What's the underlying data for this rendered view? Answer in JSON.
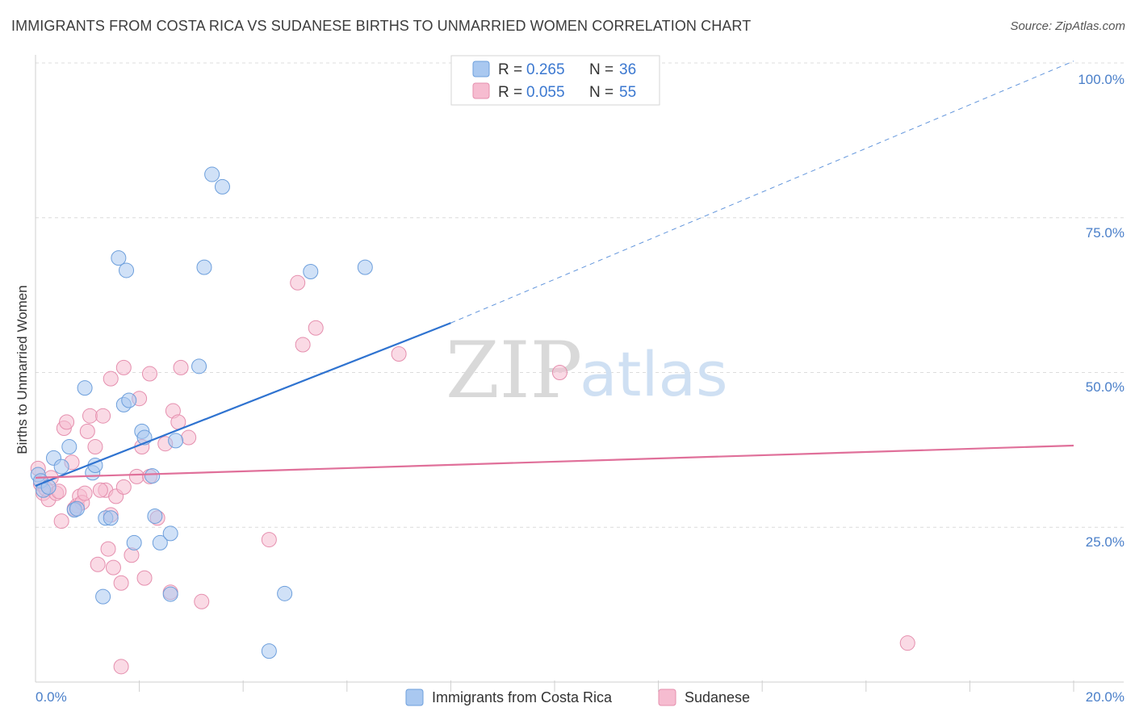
{
  "header": {
    "title": "IMMIGRANTS FROM COSTA RICA VS SUDANESE BIRTHS TO UNMARRIED WOMEN CORRELATION CHART",
    "source": "Source: ZipAtlas.com"
  },
  "watermark": {
    "zip": "ZIP",
    "atlas": "atlas"
  },
  "legend": {
    "rows": [
      {
        "r_label": "R = ",
        "r_value": "0.265",
        "n_label": "N = ",
        "n_value": "36"
      },
      {
        "r_label": "R = ",
        "r_value": "0.055",
        "n_label": "N = ",
        "n_value": "55"
      }
    ]
  },
  "bottom_legend": {
    "items": [
      {
        "label": "Immigrants from Costa Rica"
      },
      {
        "label": "Sudanese"
      }
    ]
  },
  "colors": {
    "blue_fill": "#a9c8f0",
    "blue_stroke": "#6d9fdc",
    "blue_line": "#2f73d0",
    "pink_fill": "#f6bcd0",
    "pink_stroke": "#e58fae",
    "pink_line": "#e0709a",
    "grid": "#dcdcdc",
    "tick_text": "#4a7fc9"
  },
  "chart_data": {
    "type": "scatter",
    "title": "IMMIGRANTS FROM COSTA RICA VS SUDANESE BIRTHS TO UNMARRIED WOMEN CORRELATION CHART",
    "xlabel": "",
    "ylabel": "Births to Unmarried Women",
    "xlim": [
      0,
      20
    ],
    "ylim": [
      0,
      100
    ],
    "x_tick_labels": [
      "0.0%",
      "20.0%"
    ],
    "y_tick_labels": [
      "25.0%",
      "50.0%",
      "75.0%",
      "100.0%"
    ],
    "y_ticks": [
      25,
      50,
      75,
      100
    ],
    "grid": true,
    "series": [
      {
        "name": "Immigrants from Costa Rica",
        "r": 0.265,
        "n": 36,
        "trend": {
          "x0": 0,
          "y0": 31.7,
          "x1": 8.0,
          "y1": 58.0,
          "dash_to_x": 20,
          "dash_to_y": 100.3
        },
        "points": [
          [
            0.05,
            33.5
          ],
          [
            0.1,
            32.5
          ],
          [
            0.15,
            31.0
          ],
          [
            0.25,
            31.5
          ],
          [
            0.35,
            36.2
          ],
          [
            0.5,
            34.8
          ],
          [
            0.65,
            38.0
          ],
          [
            0.75,
            27.8
          ],
          [
            0.8,
            28.0
          ],
          [
            0.95,
            47.5
          ],
          [
            1.1,
            33.8
          ],
          [
            1.15,
            35.0
          ],
          [
            1.35,
            26.5
          ],
          [
            1.45,
            26.5
          ],
          [
            1.6,
            68.5
          ],
          [
            1.7,
            44.8
          ],
          [
            1.75,
            66.5
          ],
          [
            1.8,
            45.5
          ],
          [
            1.9,
            22.5
          ],
          [
            2.05,
            40.5
          ],
          [
            2.1,
            39.5
          ],
          [
            2.3,
            26.8
          ],
          [
            2.4,
            22.5
          ],
          [
            2.6,
            24.0
          ],
          [
            2.7,
            39.0
          ],
          [
            3.15,
            51.0
          ],
          [
            3.25,
            67.0
          ],
          [
            3.4,
            82.0
          ],
          [
            3.6,
            80.0
          ],
          [
            4.5,
            5.0
          ],
          [
            4.8,
            14.3
          ],
          [
            5.3,
            66.3
          ],
          [
            6.35,
            67.0
          ],
          [
            2.6,
            14.2
          ],
          [
            1.3,
            13.8
          ],
          [
            2.25,
            33.3
          ]
        ]
      },
      {
        "name": "Sudanese",
        "r": 0.055,
        "n": 55,
        "trend": {
          "x0": 0,
          "y0": 33.0,
          "x1": 20,
          "y1": 38.2
        },
        "points": [
          [
            0.05,
            34.5
          ],
          [
            0.1,
            32.0
          ],
          [
            0.15,
            30.5
          ],
          [
            0.25,
            29.5
          ],
          [
            0.3,
            33.0
          ],
          [
            0.4,
            30.5
          ],
          [
            0.5,
            26.0
          ],
          [
            0.55,
            41.0
          ],
          [
            0.6,
            42.0
          ],
          [
            0.7,
            35.5
          ],
          [
            0.8,
            28.5
          ],
          [
            0.85,
            30.0
          ],
          [
            0.9,
            29.0
          ],
          [
            0.95,
            30.5
          ],
          [
            1.0,
            40.5
          ],
          [
            1.05,
            43.0
          ],
          [
            1.15,
            38.0
          ],
          [
            1.2,
            19.0
          ],
          [
            1.3,
            43.0
          ],
          [
            1.35,
            31.0
          ],
          [
            1.4,
            21.5
          ],
          [
            1.45,
            27.0
          ],
          [
            1.5,
            18.5
          ],
          [
            1.55,
            30.0
          ],
          [
            1.65,
            16.0
          ],
          [
            1.7,
            31.5
          ],
          [
            1.45,
            49.0
          ],
          [
            1.7,
            50.8
          ],
          [
            1.85,
            20.5
          ],
          [
            1.95,
            33.2
          ],
          [
            2.0,
            45.8
          ],
          [
            2.05,
            38.0
          ],
          [
            2.1,
            16.8
          ],
          [
            2.2,
            33.2
          ],
          [
            2.2,
            49.8
          ],
          [
            2.35,
            26.5
          ],
          [
            2.5,
            38.5
          ],
          [
            2.6,
            14.5
          ],
          [
            2.65,
            43.8
          ],
          [
            2.75,
            42.0
          ],
          [
            2.8,
            50.8
          ],
          [
            2.95,
            39.5
          ],
          [
            3.2,
            13.0
          ],
          [
            4.5,
            23.0
          ],
          [
            5.05,
            64.5
          ],
          [
            5.15,
            54.5
          ],
          [
            5.4,
            57.2
          ],
          [
            7.0,
            53.0
          ],
          [
            10.1,
            50.0
          ],
          [
            16.8,
            6.3
          ],
          [
            1.65,
            2.5
          ],
          [
            0.2,
            31.2
          ],
          [
            0.45,
            30.8
          ],
          [
            0.75,
            28.0
          ],
          [
            1.25,
            31.0
          ]
        ]
      }
    ]
  }
}
